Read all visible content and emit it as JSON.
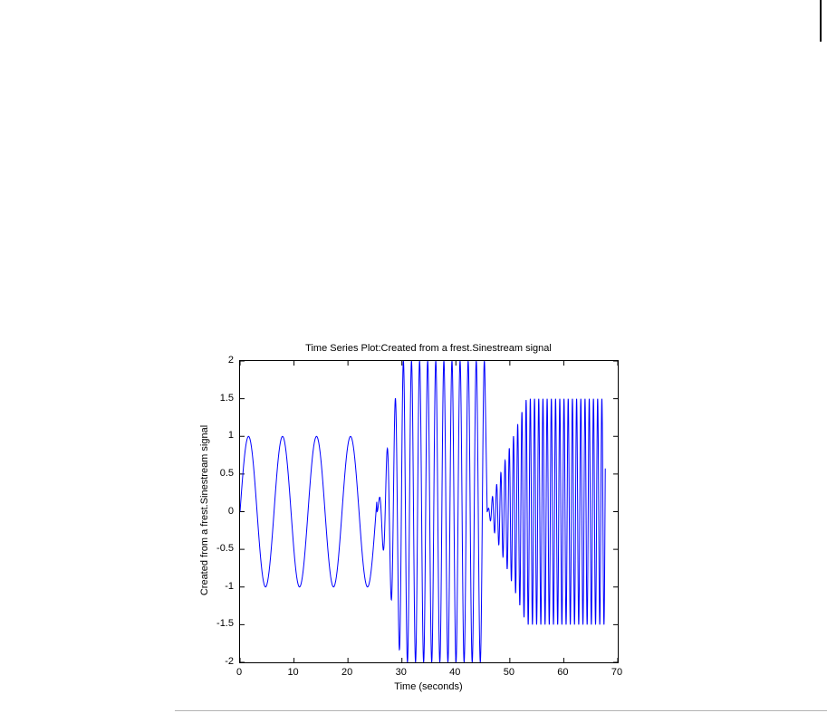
{
  "page": {
    "background_color": "#ffffff",
    "right_edge_line_color": "#000000",
    "bottom_rule_color": "#b3b3b3"
  },
  "chart_data": {
    "type": "line",
    "title": "Time Series Plot:Created from a frest.Sinestream signal",
    "xlabel": "Time (seconds)",
    "ylabel": "Created from a frest.Sinestream signal",
    "xlim": [
      0,
      70
    ],
    "ylim": [
      -2,
      2
    ],
    "xticks": [
      0,
      10,
      20,
      30,
      40,
      50,
      60,
      70
    ],
    "yticks": [
      -2,
      -1.5,
      -1,
      -0.5,
      0,
      0.5,
      1,
      1.5,
      2
    ],
    "grid": false,
    "legend_position": "none",
    "line_color": "#0000ff",
    "axis_color": "#000000",
    "tick_direction": "in",
    "series": [
      {
        "name": "frest.Sinestream signal",
        "description": "Three consecutive sine segments of increasing frequency",
        "segments": [
          {
            "t_start": 0,
            "t_end": 25.4,
            "amplitude": 1.0,
            "period_s": 6.3,
            "ramp_s": 0
          },
          {
            "t_start": 25.4,
            "t_end": 45.4,
            "amplitude": 2.0,
            "period_s": 1.5,
            "ramp_s": 4.5
          },
          {
            "t_start": 45.8,
            "t_end": 67.7,
            "amplitude": 1.5,
            "period_s": 0.78,
            "ramp_s": 7.3
          }
        ]
      }
    ]
  }
}
